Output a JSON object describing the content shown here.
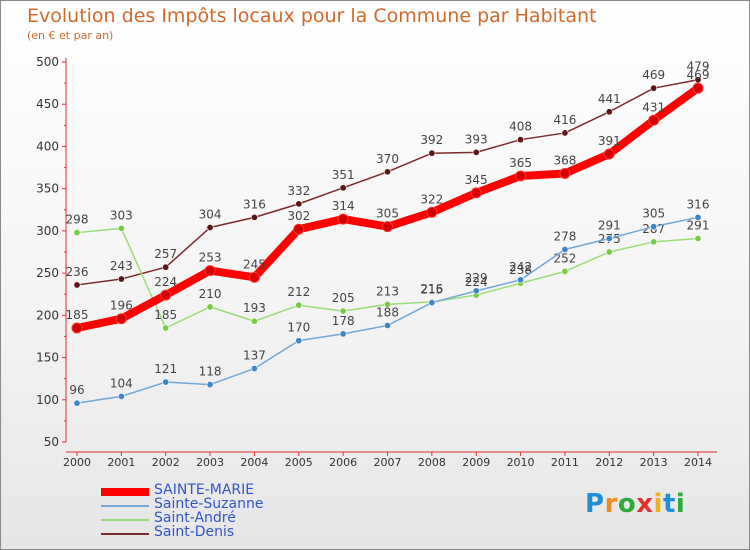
{
  "header": {
    "title": "Evolution des Impôts locaux pour la Commune par Habitant",
    "subtitle": "(en € et par an)"
  },
  "brand": {
    "letters": [
      "P",
      "r",
      "o",
      "x",
      "i",
      "t",
      "i"
    ],
    "colors": [
      "#1f8fd8",
      "#f08c1e",
      "#2faa3a",
      "#e2322b",
      "#f0b21e",
      "#1f8fd8",
      "#2faa3a"
    ]
  },
  "chart_data": {
    "type": "line",
    "x": [
      2000,
      2001,
      2002,
      2003,
      2004,
      2005,
      2006,
      2007,
      2008,
      2009,
      2010,
      2011,
      2012,
      2013,
      2014
    ],
    "ylim": [
      50,
      500
    ],
    "yticks": [
      50,
      100,
      150,
      200,
      250,
      300,
      350,
      400,
      450,
      500
    ],
    "grid": false,
    "legend_position": "bottom-left",
    "series": [
      {
        "name": "SAINTE-MARIE",
        "color": "#ff0000",
        "marker_color": "#d40000",
        "values": [
          185,
          196,
          224,
          253,
          245,
          302,
          314,
          305,
          322,
          345,
          365,
          368,
          391,
          431,
          469
        ],
        "labels": [
          "185",
          "196",
          "224",
          "253",
          "245",
          "302",
          "314",
          "305",
          "322",
          "345",
          "365",
          "368",
          "391",
          "431",
          "469"
        ]
      },
      {
        "name": "Sainte-Suzanne",
        "color": "#6fa8d8",
        "marker_color": "#3f86c6",
        "values": [
          96,
          104,
          121,
          118,
          137,
          170,
          178,
          188,
          215,
          229,
          242,
          278,
          291,
          305,
          316
        ],
        "labels": [
          "96",
          "104",
          "121",
          "118",
          "137",
          "170",
          "178",
          "188",
          "215",
          "229",
          "242",
          "278",
          "291",
          "305",
          "316"
        ]
      },
      {
        "name": "Saint-André",
        "color": "#99dd77",
        "marker_color": "#77cc44",
        "values": [
          298,
          303,
          185,
          210,
          193,
          212,
          205,
          213,
          216,
          224,
          238,
          252,
          275,
          287,
          291
        ],
        "labels": [
          "298",
          "303",
          "185",
          "210",
          "193",
          "212",
          "205",
          "213",
          "216",
          "224",
          "238",
          "252",
          "275",
          "287",
          "291"
        ]
      },
      {
        "name": "Saint-Denis",
        "color": "#7a2a2a",
        "marker_color": "#5a1515",
        "values": [
          236,
          243,
          257,
          304,
          316,
          332,
          351,
          370,
          392,
          393,
          408,
          416,
          441,
          469,
          479
        ],
        "labels": [
          "236",
          "243",
          "257",
          "304",
          "316",
          "332",
          "351",
          "370",
          "392",
          "393",
          "408",
          "416",
          "441",
          "469",
          "479"
        ]
      }
    ]
  }
}
